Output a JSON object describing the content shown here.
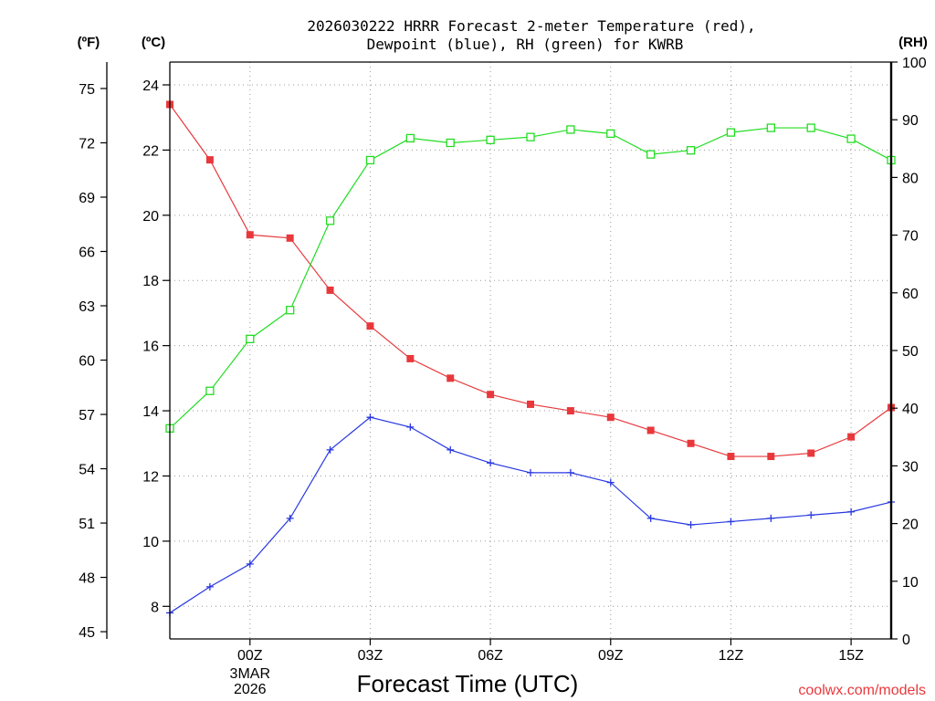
{
  "chart_data": {
    "type": "line",
    "title_lines": [
      "2026030222 HRRR Forecast 2-meter Temperature (red),",
      "Dewpoint (blue), RH (green) for KWRB"
    ],
    "xlabel": "Forecast Time (UTC)",
    "credit": "coolwx.com/models",
    "x_hours": [
      -2,
      -1,
      0,
      1,
      2,
      3,
      4,
      5,
      6,
      7,
      8,
      9,
      10,
      11,
      12,
      13,
      14,
      15,
      16
    ],
    "x_range": [
      -2,
      16
    ],
    "x_ticks": [
      {
        "hour": 0,
        "label": "00Z",
        "sub": [
          "3MAR",
          "2026"
        ]
      },
      {
        "hour": 3,
        "label": "03Z",
        "sub": []
      },
      {
        "hour": 6,
        "label": "06Z",
        "sub": []
      },
      {
        "hour": 9,
        "label": "09Z",
        "sub": []
      },
      {
        "hour": 12,
        "label": "12Z",
        "sub": []
      },
      {
        "hour": 15,
        "label": "15Z",
        "sub": []
      }
    ],
    "celsius_axis": {
      "unit": "(ºC)",
      "range": [
        7.0,
        24.7
      ],
      "ticks": [
        8,
        10,
        12,
        14,
        16,
        18,
        20,
        22,
        24
      ]
    },
    "fahrenheit_axis": {
      "unit": "(ºF)",
      "ticks": [
        45,
        48,
        51,
        54,
        57,
        60,
        63,
        66,
        69,
        72,
        75
      ]
    },
    "rh_axis": {
      "unit": "(RH)",
      "range": [
        0,
        100
      ],
      "ticks": [
        0,
        10,
        20,
        30,
        40,
        50,
        60,
        70,
        80,
        90,
        100
      ]
    },
    "grid": true,
    "series": [
      {
        "name": "2-meter Temperature",
        "axis": "celsius",
        "color": "#e8383c",
        "marker": "filled-square",
        "values": [
          23.4,
          21.7,
          19.4,
          19.3,
          17.7,
          16.6,
          15.6,
          15.0,
          14.5,
          14.2,
          14.0,
          13.8,
          13.4,
          13.0,
          12.6,
          12.6,
          12.7,
          13.2,
          14.1
        ]
      },
      {
        "name": "Dewpoint",
        "axis": "celsius",
        "color": "#2838e0",
        "marker": "plus",
        "values": [
          7.8,
          8.6,
          9.3,
          10.7,
          12.8,
          13.8,
          13.5,
          12.8,
          12.4,
          12.1,
          12.1,
          11.8,
          10.7,
          10.5,
          10.6,
          10.7,
          10.8,
          10.9,
          11.2
        ]
      },
      {
        "name": "RH",
        "axis": "rh",
        "color": "#22dd22",
        "marker": "open-square",
        "values": [
          36.5,
          43.0,
          52.0,
          57.0,
          72.5,
          83.0,
          86.8,
          86.0,
          86.5,
          87.0,
          88.3,
          87.6,
          84.0,
          84.7,
          87.8,
          88.6,
          88.6,
          86.7,
          83.0
        ]
      }
    ]
  }
}
